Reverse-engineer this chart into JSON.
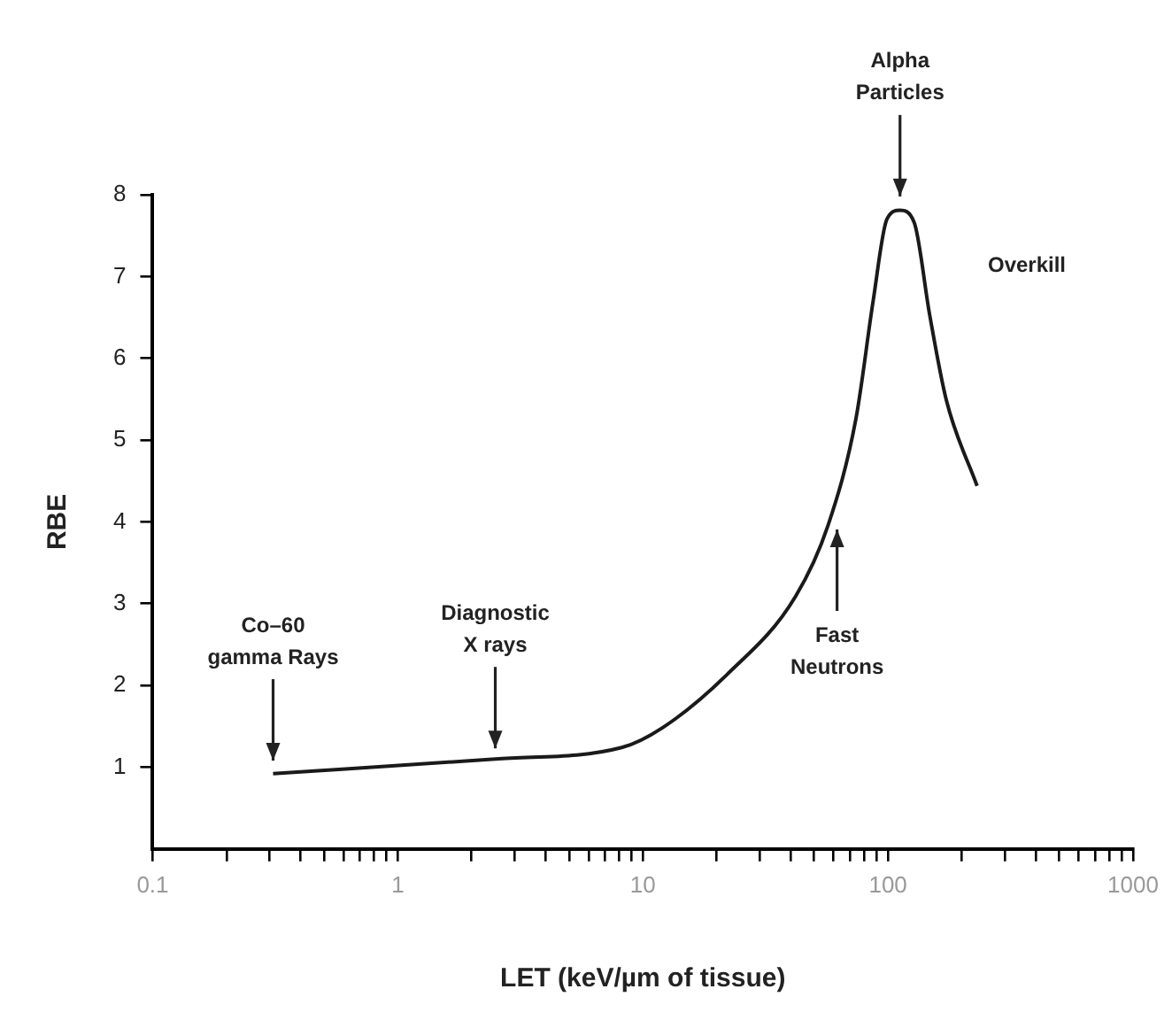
{
  "chart_data": {
    "type": "line",
    "xlabel": "LET (keV/µm of tissue)",
    "ylabel": "RBE",
    "x": [
      0.31,
      2.5,
      8.2,
      12,
      22,
      42,
      57,
      74,
      87,
      99,
      112,
      128,
      148,
      173,
      231
    ],
    "values": [
      0.92,
      1.1,
      1.24,
      1.48,
      2.13,
      3.09,
      3.96,
      5.26,
      6.7,
      7.7,
      7.81,
      7.66,
      6.53,
      5.49,
      4.44
    ],
    "color": "#1a1a1a",
    "log": "x",
    "xlim": [
      0.1,
      1000
    ],
    "ylim": [
      0,
      8
    ],
    "xticks": [
      0.1,
      {
        "value": 0.2,
        "label": null
      },
      {
        "value": 0.3,
        "label": null
      },
      {
        "value": 0.4,
        "label": null
      },
      {
        "value": 0.5,
        "label": null
      },
      {
        "value": 0.6,
        "label": null
      },
      {
        "value": 0.7,
        "label": null
      },
      {
        "value": 0.8,
        "label": null
      },
      {
        "value": 0.9,
        "label": null
      },
      1,
      {
        "value": 2,
        "label": null
      },
      {
        "value": 3,
        "label": null
      },
      {
        "value": 4,
        "label": null
      },
      {
        "value": 5,
        "label": null
      },
      {
        "value": 6,
        "label": null
      },
      {
        "value": 7,
        "label": null
      },
      {
        "value": 8,
        "label": null
      },
      {
        "value": 9,
        "label": null
      },
      10,
      {
        "value": 20,
        "label": null
      },
      {
        "value": 30,
        "label": null
      },
      {
        "value": 40,
        "label": null
      },
      {
        "value": 50,
        "label": null
      },
      {
        "value": 60,
        "label": null
      },
      {
        "value": 70,
        "label": null
      },
      {
        "value": 80,
        "label": null
      },
      {
        "value": 90,
        "label": null
      },
      100,
      {
        "value": 200,
        "label": null
      },
      {
        "value": 300,
        "label": null
      },
      {
        "value": 400,
        "label": null
      },
      {
        "value": 500,
        "label": null
      },
      {
        "value": 600,
        "label": null
      },
      {
        "value": 700,
        "label": null
      },
      {
        "value": 800,
        "label": null
      },
      {
        "value": 900,
        "label": null
      },
      1000
    ],
    "yticks": [
      1,
      2,
      3,
      4,
      5,
      6,
      7,
      8
    ],
    "annotations": [
      {
        "text": "Co–60\ngamma Rays",
        "x": 0.31,
        "y": 0.95
      },
      {
        "text": "Diagnostic\nX rays",
        "x": 2.5,
        "y": 1.1
      },
      {
        "text": "Fast\nNeutrons",
        "x": 62,
        "y": 3.95
      },
      {
        "text": "Alpha\nParticles",
        "x": 112,
        "y": 7.85
      },
      "Overkill"
    ]
  }
}
